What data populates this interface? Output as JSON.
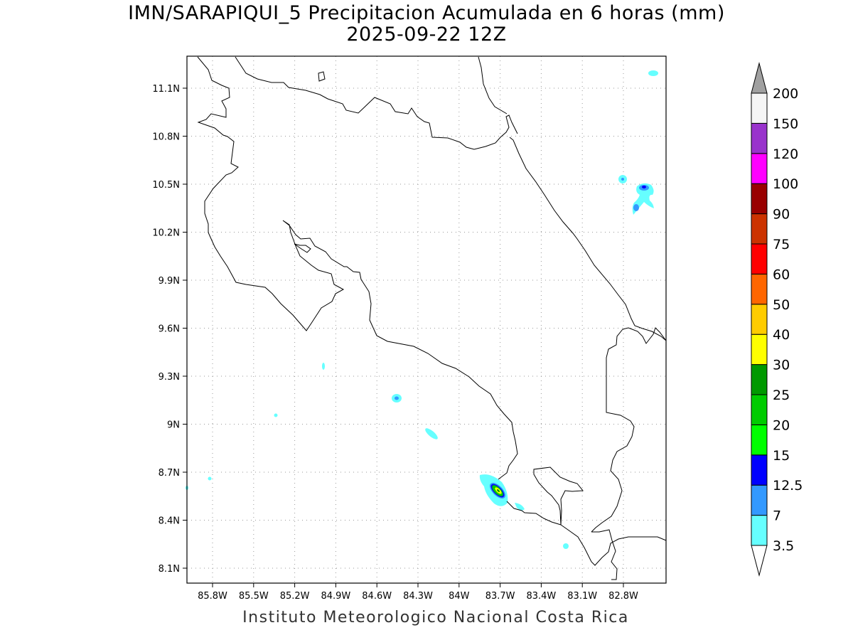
{
  "title_line1": "IMN/SARAPIQUI_5 Precipitacion Acumulada en 6 horas (mm)",
  "title_line2": "2025-09-22 12Z",
  "footer": "Instituto Meteorologico Nacional Costa Rica",
  "lat_ticks": [
    "11.1N",
    "10.8N",
    "10.5N",
    "10.2N",
    "9.9N",
    "9.6N",
    "9.3N",
    "9N",
    "8.7N",
    "8.4N",
    "8.1N"
  ],
  "lon_ticks": [
    "85.8W",
    "85.5W",
    "85.2W",
    "84.9W",
    "84.6W",
    "84.3W",
    "84W",
    "83.7W",
    "83.4W",
    "83.1W",
    "82.8W"
  ],
  "colorbar": {
    "levels": [
      "3.5",
      "7",
      "12.5",
      "15",
      "20",
      "25",
      "30",
      "40",
      "50",
      "60",
      "75",
      "90",
      "100",
      "120",
      "150",
      "200"
    ],
    "colors": [
      "#66ffff",
      "#3399ff",
      "#0000ff",
      "#00ff00",
      "#00cc00",
      "#009900",
      "#ffff00",
      "#ffcc00",
      "#ff6600",
      "#ff0000",
      "#cc3300",
      "#990000",
      "#ff00ff",
      "#9933cc",
      "#f5f5f5"
    ],
    "over_color": "#a0a0a0",
    "under_color": "#ffffff"
  },
  "map": {
    "lon_range": [
      -85.95,
      -82.65
    ],
    "lat_range": [
      8.0,
      11.25
    ],
    "grid": true
  }
}
